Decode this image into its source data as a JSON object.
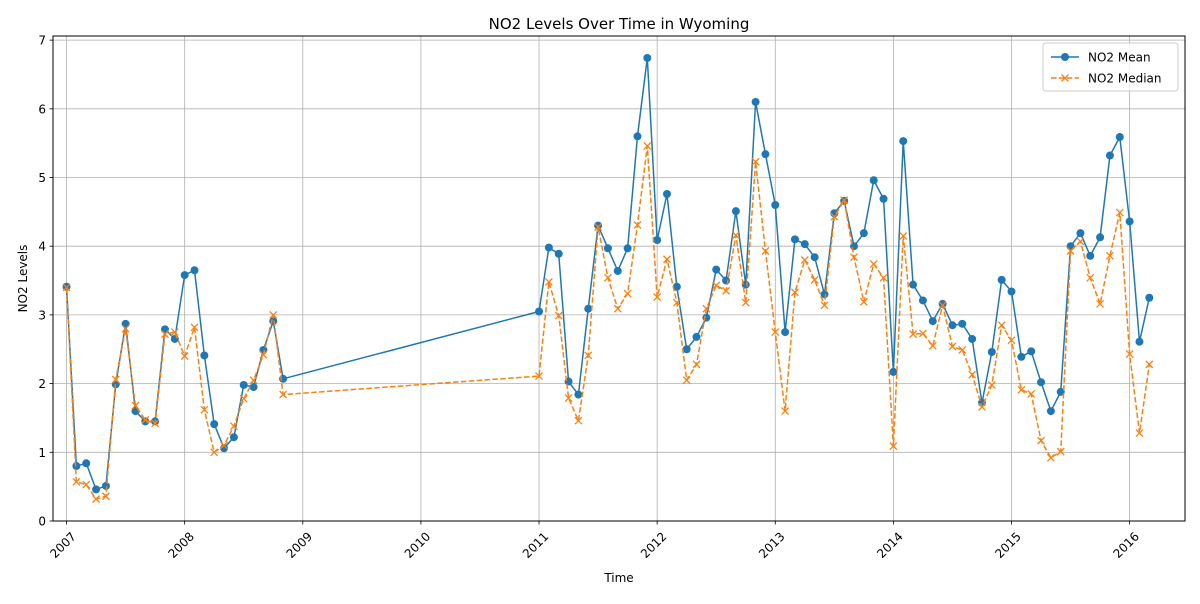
{
  "chart_data": {
    "type": "line",
    "title": "NO2 Levels Over Time in Wyoming",
    "xlabel": "Time",
    "ylabel": "NO2 Levels",
    "xlim": [
      "2006-11-20",
      "2016-06-20"
    ],
    "ylim": [
      0,
      7.06
    ],
    "x_ticks": [
      "2007",
      "2008",
      "2009",
      "2010",
      "2011",
      "2012",
      "2013",
      "2014",
      "2015",
      "2016"
    ],
    "y_ticks": [
      "0",
      "1",
      "2",
      "3",
      "4",
      "5",
      "6",
      "7"
    ],
    "grid": true,
    "legend": "top-right",
    "x_is_date": true,
    "series": [
      {
        "name": "NO2 Mean",
        "color": "#1f77b4",
        "line_style": "solid",
        "marker": "circle",
        "points": [
          [
            "2007-01",
            3.41
          ],
          [
            "2007-02",
            0.8
          ],
          [
            "2007-03",
            0.84
          ],
          [
            "2007-04",
            0.46
          ],
          [
            "2007-05",
            0.51
          ],
          [
            "2007-06",
            1.99
          ],
          [
            "2007-07",
            2.87
          ],
          [
            "2007-08",
            1.6
          ],
          [
            "2007-09",
            1.45
          ],
          [
            "2007-10",
            1.45
          ],
          [
            "2007-11",
            2.79
          ],
          [
            "2007-12",
            2.65
          ],
          [
            "2008-01",
            3.58
          ],
          [
            "2008-02",
            3.65
          ],
          [
            "2008-03",
            2.41
          ],
          [
            "2008-04",
            1.41
          ],
          [
            "2008-05",
            1.06
          ],
          [
            "2008-06",
            1.22
          ],
          [
            "2008-07",
            1.98
          ],
          [
            "2008-08",
            1.95
          ],
          [
            "2008-09",
            2.49
          ],
          [
            "2008-10",
            2.91
          ],
          [
            "2008-11",
            2.07
          ],
          [
            "2011-01",
            3.05
          ],
          [
            "2011-02",
            3.98
          ],
          [
            "2011-03",
            3.89
          ],
          [
            "2011-04",
            2.03
          ],
          [
            "2011-05",
            1.84
          ],
          [
            "2011-06",
            3.09
          ],
          [
            "2011-07",
            4.3
          ],
          [
            "2011-08",
            3.97
          ],
          [
            "2011-09",
            3.64
          ],
          [
            "2011-10",
            3.97
          ],
          [
            "2011-11",
            5.6
          ],
          [
            "2011-12",
            6.74
          ],
          [
            "2012-01",
            4.09
          ],
          [
            "2012-02",
            4.76
          ],
          [
            "2012-03",
            3.41
          ],
          [
            "2012-04",
            2.5
          ],
          [
            "2012-05",
            2.68
          ],
          [
            "2012-06",
            2.96
          ],
          [
            "2012-07",
            3.66
          ],
          [
            "2012-08",
            3.5
          ],
          [
            "2012-09",
            4.51
          ],
          [
            "2012-10",
            3.44
          ],
          [
            "2012-11",
            6.1
          ],
          [
            "2012-12",
            5.34
          ],
          [
            "2013-01",
            4.6
          ],
          [
            "2013-02",
            2.75
          ],
          [
            "2013-03",
            4.1
          ],
          [
            "2013-04",
            4.03
          ],
          [
            "2013-05",
            3.84
          ],
          [
            "2013-06",
            3.3
          ],
          [
            "2013-07",
            4.48
          ],
          [
            "2013-08",
            4.66
          ],
          [
            "2013-09",
            4.0
          ],
          [
            "2013-10",
            4.19
          ],
          [
            "2013-11",
            4.96
          ],
          [
            "2013-12",
            4.69
          ],
          [
            "2014-01",
            2.17
          ],
          [
            "2014-02",
            5.53
          ],
          [
            "2014-03",
            3.44
          ],
          [
            "2014-04",
            3.21
          ],
          [
            "2014-05",
            2.91
          ],
          [
            "2014-06",
            3.16
          ],
          [
            "2014-07",
            2.85
          ],
          [
            "2014-08",
            2.87
          ],
          [
            "2014-09",
            2.65
          ],
          [
            "2014-10",
            1.72
          ],
          [
            "2014-11",
            2.46
          ],
          [
            "2014-12",
            3.51
          ],
          [
            "2015-01",
            3.34
          ],
          [
            "2015-02",
            2.39
          ],
          [
            "2015-03",
            2.47
          ],
          [
            "2015-04",
            2.02
          ],
          [
            "2015-05",
            1.6
          ],
          [
            "2015-06",
            1.88
          ],
          [
            "2015-07",
            4.0
          ],
          [
            "2015-08",
            4.19
          ],
          [
            "2015-09",
            3.86
          ],
          [
            "2015-10",
            4.13
          ],
          [
            "2015-11",
            5.32
          ],
          [
            "2015-12",
            5.59
          ],
          [
            "2016-01",
            4.36
          ],
          [
            "2016-02",
            2.61
          ],
          [
            "2016-03",
            3.25
          ]
        ]
      },
      {
        "name": "NO2 Median",
        "color": "#ff7f0e",
        "line_style": "dashed",
        "marker": "x",
        "points": [
          [
            "2007-01",
            3.4
          ],
          [
            "2007-02",
            0.57
          ],
          [
            "2007-03",
            0.53
          ],
          [
            "2007-04",
            0.32
          ],
          [
            "2007-05",
            0.36
          ],
          [
            "2007-06",
            2.06
          ],
          [
            "2007-07",
            2.8
          ],
          [
            "2007-08",
            1.68
          ],
          [
            "2007-09",
            1.47
          ],
          [
            "2007-10",
            1.42
          ],
          [
            "2007-11",
            2.72
          ],
          [
            "2007-12",
            2.75
          ],
          [
            "2008-01",
            2.4
          ],
          [
            "2008-02",
            2.82
          ],
          [
            "2008-03",
            1.62
          ],
          [
            "2008-04",
            1.0
          ],
          [
            "2008-05",
            1.1
          ],
          [
            "2008-06",
            1.38
          ],
          [
            "2008-07",
            1.78
          ],
          [
            "2008-08",
            2.05
          ],
          [
            "2008-09",
            2.42
          ],
          [
            "2008-10",
            3.0
          ],
          [
            "2008-11",
            1.84
          ],
          [
            "2011-01",
            2.11
          ],
          [
            "2011-02",
            3.48
          ],
          [
            "2011-03",
            2.99
          ],
          [
            "2011-04",
            1.79
          ],
          [
            "2011-05",
            1.46
          ],
          [
            "2011-06",
            2.41
          ],
          [
            "2011-07",
            4.28
          ],
          [
            "2011-08",
            3.54
          ],
          [
            "2011-09",
            3.09
          ],
          [
            "2011-10",
            3.31
          ],
          [
            "2011-11",
            4.31
          ],
          [
            "2011-12",
            5.46
          ],
          [
            "2012-01",
            3.26
          ],
          [
            "2012-02",
            3.81
          ],
          [
            "2012-03",
            3.18
          ],
          [
            "2012-04",
            2.05
          ],
          [
            "2012-05",
            2.28
          ],
          [
            "2012-06",
            3.09
          ],
          [
            "2012-07",
            3.43
          ],
          [
            "2012-08",
            3.35
          ],
          [
            "2012-09",
            4.16
          ],
          [
            "2012-10",
            3.18
          ],
          [
            "2012-11",
            5.23
          ],
          [
            "2012-12",
            3.93
          ],
          [
            "2013-01",
            2.75
          ],
          [
            "2013-02",
            1.6
          ],
          [
            "2013-03",
            3.33
          ],
          [
            "2013-04",
            3.8
          ],
          [
            "2013-05",
            3.51
          ],
          [
            "2013-06",
            3.14
          ],
          [
            "2013-07",
            4.43
          ],
          [
            "2013-08",
            4.67
          ],
          [
            "2013-09",
            3.84
          ],
          [
            "2013-10",
            3.19
          ],
          [
            "2013-11",
            3.74
          ],
          [
            "2013-12",
            3.54
          ],
          [
            "2014-01",
            1.09
          ],
          [
            "2014-02",
            4.15
          ],
          [
            "2014-03",
            2.72
          ],
          [
            "2014-04",
            2.73
          ],
          [
            "2014-05",
            2.55
          ],
          [
            "2014-06",
            3.14
          ],
          [
            "2014-07",
            2.54
          ],
          [
            "2014-08",
            2.49
          ],
          [
            "2014-09",
            2.13
          ],
          [
            "2014-10",
            1.66
          ],
          [
            "2014-11",
            1.98
          ],
          [
            "2014-12",
            2.85
          ],
          [
            "2015-01",
            2.63
          ],
          [
            "2015-02",
            1.91
          ],
          [
            "2015-03",
            1.85
          ],
          [
            "2015-04",
            1.17
          ],
          [
            "2015-05",
            0.92
          ],
          [
            "2015-06",
            1.01
          ],
          [
            "2015-07",
            3.93
          ],
          [
            "2015-08",
            4.07
          ],
          [
            "2015-09",
            3.54
          ],
          [
            "2015-10",
            3.16
          ],
          [
            "2015-11",
            3.86
          ],
          [
            "2015-12",
            4.49
          ],
          [
            "2016-01",
            2.43
          ],
          [
            "2016-02",
            1.28
          ],
          [
            "2016-03",
            2.28
          ]
        ]
      }
    ]
  }
}
